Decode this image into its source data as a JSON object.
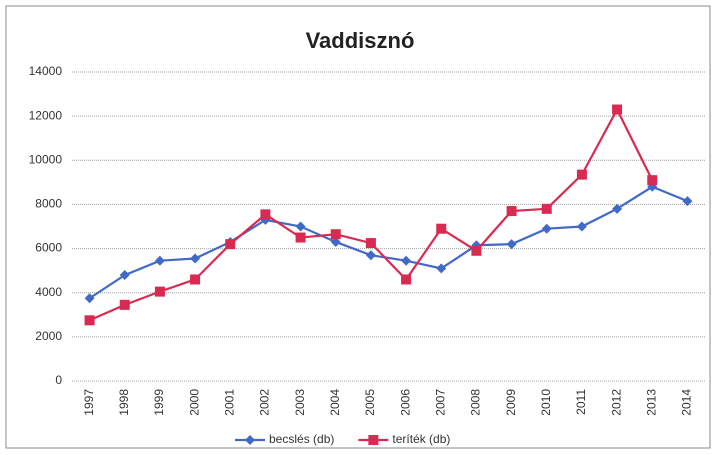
{
  "chart_data": {
    "type": "line",
    "title": "Vaddisznó",
    "categories": [
      "1997",
      "1998",
      "1999",
      "2000",
      "2001",
      "2002",
      "2003",
      "2004",
      "2005",
      "2006",
      "2007",
      "2008",
      "2009",
      "2010",
      "2011",
      "2012",
      "2013",
      "2014"
    ],
    "series": [
      {
        "name": "becslés (db)",
        "color": "#4169c8",
        "marker": "diamond",
        "values": [
          3750,
          4800,
          5450,
          5550,
          6300,
          7300,
          7000,
          6300,
          5700,
          5450,
          5100,
          6150,
          6200,
          6900,
          7000,
          7800,
          8800,
          8150
        ]
      },
      {
        "name": "teríték (db)",
        "color": "#d92a52",
        "marker": "square",
        "values": [
          2750,
          3450,
          4050,
          4600,
          6200,
          7550,
          6500,
          6650,
          6250,
          4600,
          6900,
          5900,
          7700,
          7800,
          9350,
          12300,
          9100,
          null
        ]
      }
    ],
    "ylim": [
      0,
      14000
    ],
    "yticks": [
      0,
      2000,
      4000,
      6000,
      8000,
      10000,
      12000,
      14000
    ],
    "grid": true,
    "legend": "bottom"
  }
}
